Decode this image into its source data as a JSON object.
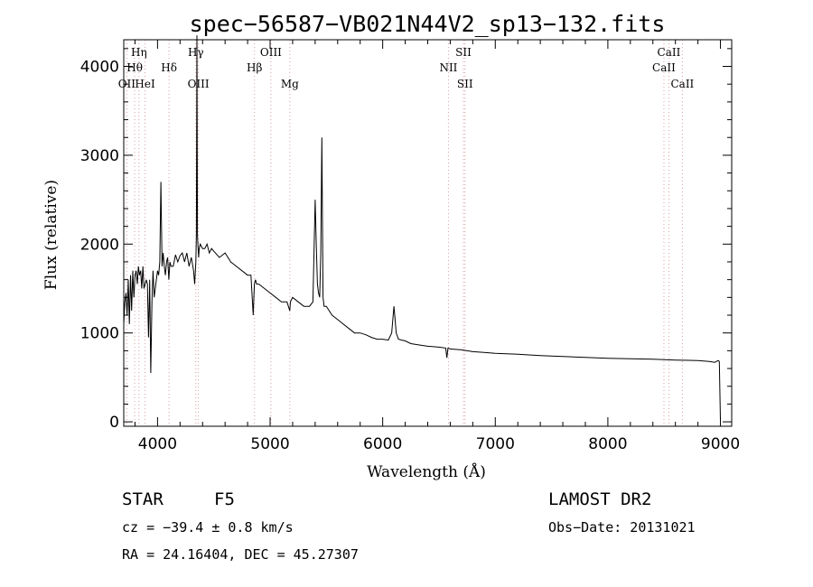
{
  "chart_data": {
    "type": "line",
    "title": "spec−56587−VB021N44V2_sp13−132.fits",
    "xlabel": "Wavelength (Å)",
    "ylabel": "Flux (relative)",
    "xlim": [
      3700,
      9100
    ],
    "ylim": [
      -50,
      4300
    ],
    "xticks": [
      4000,
      5000,
      6000,
      7000,
      8000,
      9000
    ],
    "yticks": [
      0,
      1000,
      2000,
      3000,
      4000
    ],
    "grid": false,
    "series": [
      {
        "x": [
          3700,
          3710,
          3720,
          3730,
          3740,
          3750,
          3760,
          3770,
          3780,
          3790,
          3800,
          3810,
          3820,
          3830,
          3840,
          3850,
          3860,
          3870,
          3880,
          3890,
          3900,
          3910,
          3920,
          3930,
          3940,
          3950,
          3960,
          3970,
          3980,
          3990,
          4000,
          4010,
          4020,
          4030,
          4040,
          4050,
          4060,
          4070,
          4080,
          4090,
          4100,
          4110,
          4120,
          4140,
          4160,
          4180,
          4200,
          4220,
          4240,
          4260,
          4280,
          4300,
          4320,
          4330,
          4340,
          4345,
          4350,
          4355,
          4360,
          4365,
          4370,
          4380,
          4400,
          4420,
          4440,
          4460,
          4480,
          4500,
          4550,
          4600,
          4650,
          4700,
          4750,
          4800,
          4830,
          4850,
          4860,
          4870,
          4880,
          4900,
          4950,
          5000,
          5050,
          5100,
          5150,
          5175,
          5180,
          5200,
          5250,
          5300,
          5350,
          5380,
          5400,
          5410,
          5420,
          5430,
          5440,
          5450,
          5460,
          5470,
          5480,
          5500,
          5550,
          5600,
          5650,
          5700,
          5750,
          5800,
          5850,
          5900,
          5950,
          6000,
          6050,
          6080,
          6100,
          6110,
          6120,
          6140,
          6170,
          6200,
          6250,
          6300,
          6350,
          6400,
          6500,
          6560,
          6570,
          6580,
          6600,
          6700,
          6800,
          6900,
          7000,
          7200,
          7400,
          7600,
          7800,
          8000,
          8200,
          8400,
          8600,
          8800,
          8900,
          8950,
          8980,
          8990,
          9000
        ],
        "values": [
          1100,
          1350,
          1450,
          1200,
          1600,
          1100,
          1650,
          1250,
          1700,
          1400,
          1650,
          1700,
          1550,
          1750,
          1650,
          1700,
          1500,
          1750,
          1500,
          1550,
          1600,
          1550,
          950,
          1600,
          550,
          1350,
          1700,
          1400,
          1500,
          1600,
          1700,
          1650,
          1800,
          2700,
          1750,
          1900,
          1750,
          1650,
          1800,
          1850,
          1600,
          1800,
          1750,
          1750,
          1880,
          1800,
          1870,
          1900,
          1800,
          1900,
          1750,
          1850,
          1700,
          1550,
          1800,
          2100,
          4350,
          2100,
          1950,
          1850,
          1950,
          2000,
          1950,
          1950,
          2000,
          1900,
          1950,
          1920,
          1850,
          1900,
          1800,
          1750,
          1700,
          1650,
          1650,
          1200,
          1550,
          1600,
          1550,
          1550,
          1500,
          1450,
          1400,
          1350,
          1350,
          1250,
          1350,
          1400,
          1350,
          1300,
          1300,
          1350,
          2500,
          2000,
          1550,
          1450,
          1400,
          1900,
          3200,
          1400,
          1300,
          1300,
          1200,
          1150,
          1100,
          1050,
          1000,
          1000,
          980,
          950,
          930,
          930,
          920,
          1000,
          1300,
          1150,
          1000,
          930,
          920,
          910,
          880,
          870,
          860,
          850,
          840,
          830,
          720,
          830,
          820,
          810,
          790,
          780,
          770,
          760,
          745,
          735,
          725,
          715,
          710,
          705,
          695,
          690,
          680,
          670,
          690,
          680,
          20
        ]
      }
    ],
    "lines": [
      {
        "name": "Hη",
        "x": 3835,
        "row": 1
      },
      {
        "name": "Hθ",
        "x": 3797,
        "row": 2
      },
      {
        "name": "OII",
        "x": 3727,
        "row": 3
      },
      {
        "name": "HeI",
        "x": 3889,
        "row": 3
      },
      {
        "name": "Hδ",
        "x": 4102,
        "row": 2
      },
      {
        "name": "Hγ",
        "x": 4340,
        "row": 1
      },
      {
        "name": "OIII",
        "x": 4363,
        "row": 3
      },
      {
        "name": "OIII",
        "x": 5007,
        "row": 1
      },
      {
        "name": "Hβ",
        "x": 4861,
        "row": 2
      },
      {
        "name": "Mg",
        "x": 5175,
        "row": 3
      },
      {
        "name": "SII",
        "x": 6717,
        "row": 1
      },
      {
        "name": "NII",
        "x": 6584,
        "row": 2
      },
      {
        "name": "SII",
        "x": 6731,
        "row": 3
      },
      {
        "name": "CaII",
        "x": 8542,
        "row": 1
      },
      {
        "name": "CaII",
        "x": 8498,
        "row": 2
      },
      {
        "name": "CaII",
        "x": 8662,
        "row": 3
      }
    ],
    "colors": {
      "spectrum": "#000000",
      "line_markers": "#d7a0a0",
      "axis": "#000000"
    }
  },
  "info": {
    "class": "STAR",
    "subclass": "F5",
    "survey": "LAMOST DR2",
    "cz": "cz = −39.4 ± 0.8 km/s",
    "obs_date": "Obs−Date: 20131021",
    "radec": "RA =  24.16404, DEC =  45.27307"
  }
}
